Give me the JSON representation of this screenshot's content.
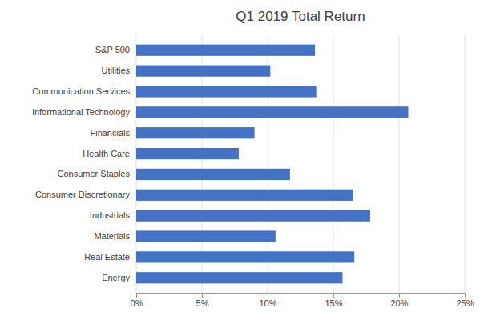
{
  "chart_data": {
    "type": "bar",
    "title": "Q1 2019 Total Return",
    "orientation": "horizontal",
    "categories": [
      "Energy",
      "Real Estate",
      "Materials",
      "Industrials",
      "Consumer Discretionary",
      "Consumer Staples",
      "Health Care",
      "Financials",
      "Informational Technology",
      "Communication Services",
      "Utilities",
      "S&P 500"
    ],
    "values": [
      15.7,
      16.6,
      10.6,
      17.8,
      16.5,
      11.7,
      7.8,
      9.0,
      20.7,
      13.7,
      10.2,
      13.6
    ],
    "color": "#4472C4",
    "xlim": [
      0,
      25
    ],
    "xticks": [
      {
        "value": 0,
        "label": "0%"
      },
      {
        "value": 5,
        "label": "5%"
      },
      {
        "value": 10,
        "label": "10%"
      },
      {
        "value": 15,
        "label": "15%"
      },
      {
        "value": 20,
        "label": "20%"
      },
      {
        "value": 25,
        "label": "25%"
      }
    ],
    "grid": true
  }
}
